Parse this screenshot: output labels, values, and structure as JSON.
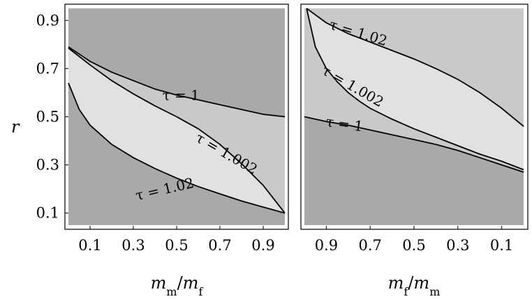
{
  "chart_data": [
    {
      "type": "area",
      "panel": "left",
      "xlabel": {
        "var": "m",
        "sub": "m",
        "slash": "/",
        "var2": "m",
        "sub2": "f"
      },
      "ylabel": "r",
      "xlim": [
        0,
        1
      ],
      "ylim": [
        0.05,
        0.95
      ],
      "x_ticks": [
        "0.1",
        "0.3",
        "0.5",
        "0.7",
        "0.9"
      ],
      "x_tick_values": [
        0.1,
        0.3,
        0.5,
        0.7,
        0.9
      ],
      "y_ticks": [
        "0.1",
        "0.3",
        "0.5",
        "0.7",
        "0.9"
      ],
      "y_tick_values": [
        0.1,
        0.3,
        0.5,
        0.7,
        0.9
      ],
      "region_colors": {
        "dark": "#a9a9a9",
        "mid": "#c9c9c9",
        "light": "#e1e1e1"
      },
      "curves": [
        {
          "label": "τ = 1",
          "x": [
            0,
            0.1,
            0.2,
            0.3,
            0.4,
            0.5,
            0.6,
            0.7,
            0.8,
            0.9,
            1.0
          ],
          "y": [
            0.79,
            0.73,
            0.685,
            0.65,
            0.615,
            0.59,
            0.57,
            0.55,
            0.53,
            0.51,
            0.5
          ]
        },
        {
          "label": "τ = 1.002",
          "x": [
            0,
            0.1,
            0.2,
            0.3,
            0.4,
            0.5,
            0.6,
            0.7,
            0.8,
            0.9,
            1.0
          ],
          "y": [
            0.785,
            0.715,
            0.65,
            0.595,
            0.545,
            0.5,
            0.45,
            0.385,
            0.305,
            0.215,
            0.1
          ]
        },
        {
          "label": "τ = 1.02",
          "x": [
            0,
            0.05,
            0.1,
            0.2,
            0.3,
            0.4,
            0.5,
            0.6,
            0.7,
            0.8,
            0.9,
            1.0
          ],
          "y": [
            0.64,
            0.53,
            0.465,
            0.385,
            0.33,
            0.285,
            0.245,
            0.21,
            0.18,
            0.15,
            0.125,
            0.1
          ]
        }
      ],
      "labels": [
        {
          "text": "τ = 1",
          "x": 0.52,
          "y": 0.57,
          "angle": 0
        },
        {
          "text": "τ = 1.002",
          "x": 0.72,
          "y": 0.33,
          "angle": 30
        },
        {
          "text": "τ = 1.02",
          "x": 0.45,
          "y": 0.18,
          "angle": -13
        }
      ]
    },
    {
      "type": "area",
      "panel": "right",
      "xlabel": {
        "var": "m",
        "sub": "f",
        "slash": "/",
        "var2": "m",
        "sub2": "m"
      },
      "ylabel": "",
      "xlim": [
        1,
        0
      ],
      "ylim": [
        0.05,
        0.95
      ],
      "x_ticks": [
        "0.9",
        "0.7",
        "0.5",
        "0.3",
        "0.1"
      ],
      "x_tick_values": [
        0.9,
        0.7,
        0.5,
        0.3,
        0.1
      ],
      "y_ticks": [],
      "region_colors": {
        "dark": "#a9a9a9",
        "mid": "#c9c9c9",
        "light": "#e1e1e1"
      },
      "curves": [
        {
          "label": "τ = 1",
          "x": [
            1.0,
            0.9,
            0.8,
            0.7,
            0.6,
            0.5,
            0.4,
            0.3,
            0.2,
            0.1,
            0.0
          ],
          "y": [
            0.5,
            0.48,
            0.465,
            0.445,
            0.425,
            0.405,
            0.385,
            0.36,
            0.33,
            0.3,
            0.27
          ]
        },
        {
          "label": "τ = 1.002",
          "x": [
            0.99,
            0.95,
            0.9,
            0.85,
            0.8,
            0.75,
            0.7,
            0.6,
            0.5,
            0.4,
            0.3,
            0.2,
            0.1,
            0.0
          ],
          "y": [
            0.95,
            0.79,
            0.7,
            0.645,
            0.6,
            0.565,
            0.535,
            0.49,
            0.45,
            0.415,
            0.38,
            0.345,
            0.315,
            0.28
          ]
        },
        {
          "label": "τ = 1.02",
          "x": [
            0.99,
            0.9,
            0.8,
            0.7,
            0.6,
            0.5,
            0.4,
            0.3,
            0.2,
            0.1,
            0.0
          ],
          "y": [
            0.95,
            0.89,
            0.845,
            0.81,
            0.775,
            0.74,
            0.7,
            0.655,
            0.6,
            0.535,
            0.46
          ]
        }
      ],
      "labels": [
        {
          "text": "τ = 1.02",
          "x": 0.76,
          "y": 0.83,
          "angle": 17
        },
        {
          "text": "τ = 1.002",
          "x": 0.79,
          "y": 0.61,
          "angle": 30
        },
        {
          "text": "τ = 1",
          "x": 0.82,
          "y": 0.45,
          "angle": 8
        }
      ]
    }
  ]
}
